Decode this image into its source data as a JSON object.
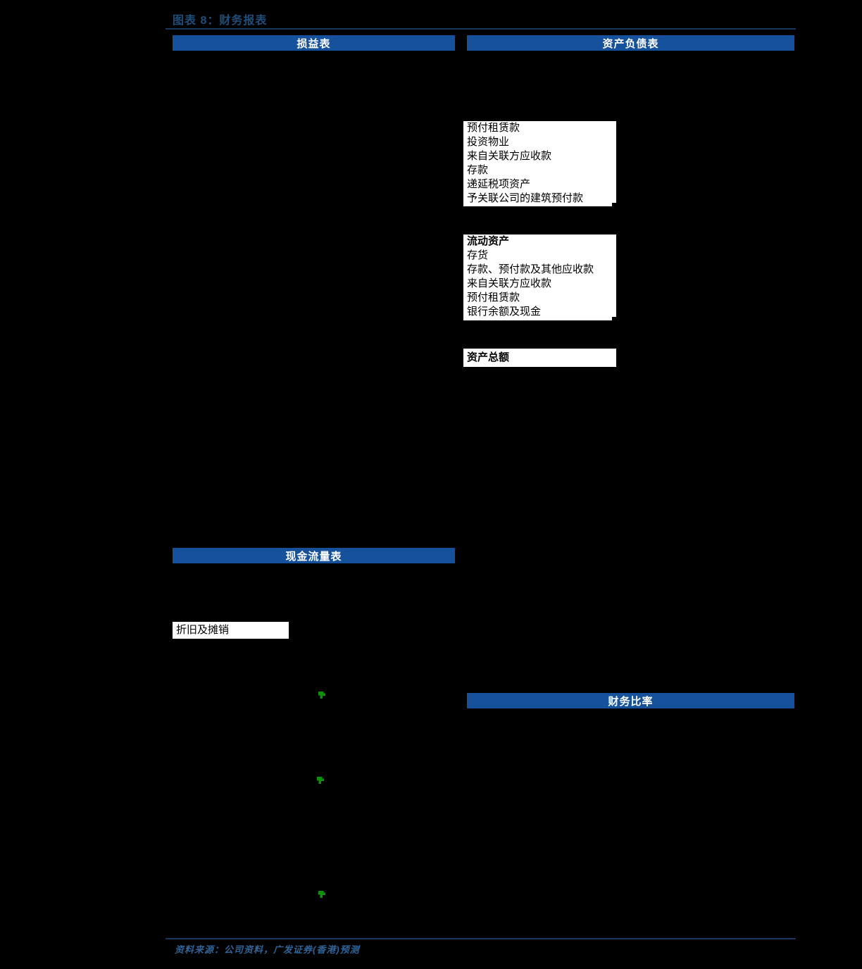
{
  "figure": {
    "title": "图表 8：财务报表",
    "source": "资料来源：公司资料，广发证券(香港)预测"
  },
  "colors": {
    "background": "#000000",
    "header_bar": "#15529B",
    "header_bar_text": "#FFFFFF",
    "title_text": "#1F4E79",
    "rule": "#17375E",
    "source_text": "#2E6497",
    "box_background": "#FFFFFF",
    "box_text": "#000000",
    "green_marker": "#0B9209"
  },
  "sections": {
    "income_statement": {
      "label": "损益表"
    },
    "balance_sheet": {
      "label": "资产负债表"
    },
    "cash_flow": {
      "label": "现金流量表"
    },
    "financial_ratios": {
      "label": "财务比率"
    }
  },
  "balance_sheet": {
    "non_current_box": {
      "items": [
        "预付租赁款",
        "投资物业",
        "来自关联方应收款",
        "存款",
        "递延税项资产",
        "予关联公司的建筑预付款"
      ]
    },
    "current_assets_box": {
      "header": "流动资产",
      "items": [
        "存货",
        "存款、预付款及其他应收款",
        "来自关联方应收款",
        "预付租赁款",
        "银行余额及现金"
      ]
    },
    "total_assets_label": "资产总额"
  },
  "cash_flow_box": {
    "item": "折旧及摊销"
  },
  "markers": {
    "icon": "green-step-arrow-icon",
    "count": 3
  }
}
